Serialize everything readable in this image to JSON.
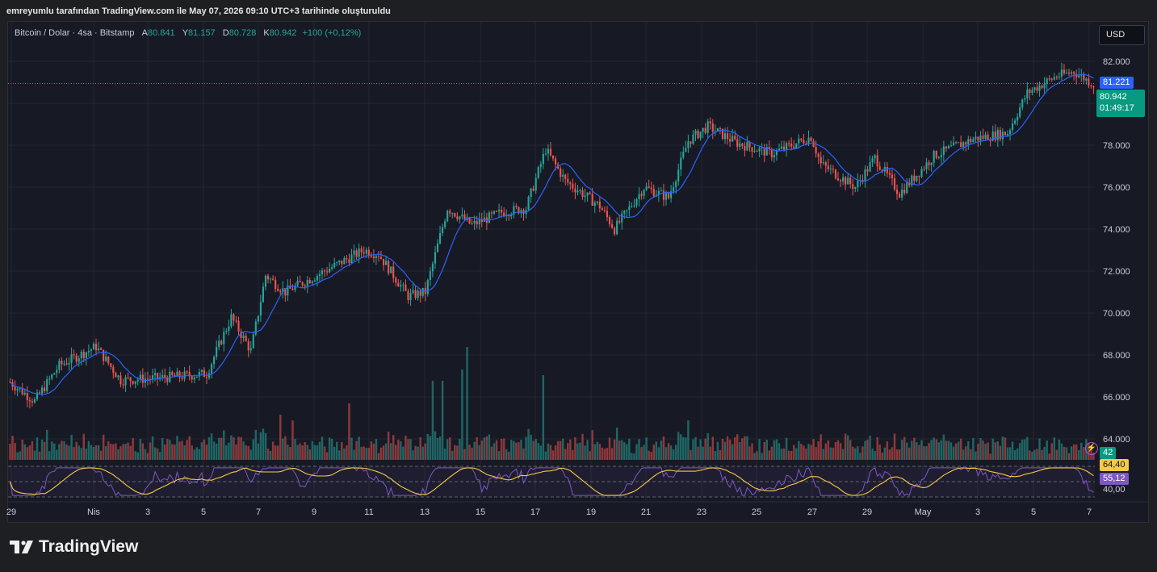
{
  "caption": "emreyumlu tarafından TradingView.com ile May 07, 2026 09:10 UTC+3 tarihinde oluşturuldu",
  "legend": {
    "symbol": "Bitcoin / Dolar · 4sa · Bitstamp",
    "open_label": "A",
    "open": "80.841",
    "high_label": "Y",
    "high": "81.157",
    "low_label": "D",
    "low": "80.728",
    "close_label": "K",
    "close": "80.942",
    "change": "+100 (+0,12%)"
  },
  "currency": "USD",
  "logo_text": "TradingView",
  "tags": {
    "ma_value": "81.221",
    "last_price": "80.942",
    "countdown": "01:49:17",
    "volume": "42",
    "rsi_ma": "64,40",
    "rsi": "55,12"
  },
  "colors": {
    "up": "#26a69a",
    "down": "#ef5350",
    "ma": "#2962ff",
    "rsi": "#7e57c2",
    "rsi_ma": "#f7c948",
    "background": "#171a24"
  },
  "chart_data": {
    "type": "candlestick",
    "symbol": "Bitcoin / Dolar",
    "interval": "4sa",
    "exchange": "Bitstamp",
    "ylim": [
      63000,
      83000
    ],
    "y_ticks": [
      "64.000",
      "66.000",
      "68.000",
      "70.000",
      "72.000",
      "74.000",
      "76.000",
      "78.000",
      "80.000",
      "82.000"
    ],
    "x_ticks": [
      "29",
      "Nis",
      "3",
      "5",
      "7",
      "9",
      "11",
      "13",
      "15",
      "17",
      "19",
      "21",
      "23",
      "25",
      "27",
      "29",
      "May",
      "3",
      "5",
      "7"
    ],
    "rsi_ticks": [
      "40,00"
    ],
    "close_anchors": [
      {
        "x": 0,
        "y": 66700
      },
      {
        "x": 10,
        "y": 65800
      },
      {
        "x": 20,
        "y": 67500
      },
      {
        "x": 35,
        "y": 68400
      },
      {
        "x": 45,
        "y": 66800
      },
      {
        "x": 60,
        "y": 66900
      },
      {
        "x": 80,
        "y": 67100
      },
      {
        "x": 90,
        "y": 69800
      },
      {
        "x": 98,
        "y": 68200
      },
      {
        "x": 104,
        "y": 71800
      },
      {
        "x": 112,
        "y": 71000
      },
      {
        "x": 128,
        "y": 72000
      },
      {
        "x": 144,
        "y": 73000
      },
      {
        "x": 150,
        "y": 72800
      },
      {
        "x": 162,
        "y": 70800
      },
      {
        "x": 169,
        "y": 71000
      },
      {
        "x": 178,
        "y": 75000
      },
      {
        "x": 188,
        "y": 74200
      },
      {
        "x": 200,
        "y": 74800
      },
      {
        "x": 210,
        "y": 75000
      },
      {
        "x": 218,
        "y": 77800
      },
      {
        "x": 226,
        "y": 76300
      },
      {
        "x": 240,
        "y": 75100
      },
      {
        "x": 246,
        "y": 74000
      },
      {
        "x": 258,
        "y": 76000
      },
      {
        "x": 268,
        "y": 75500
      },
      {
        "x": 276,
        "y": 78200
      },
      {
        "x": 284,
        "y": 78900
      },
      {
        "x": 296,
        "y": 78100
      },
      {
        "x": 310,
        "y": 77600
      },
      {
        "x": 326,
        "y": 78400
      },
      {
        "x": 330,
        "y": 77100
      },
      {
        "x": 344,
        "y": 76000
      },
      {
        "x": 352,
        "y": 77400
      },
      {
        "x": 362,
        "y": 75700
      },
      {
        "x": 376,
        "y": 77500
      },
      {
        "x": 392,
        "y": 78300
      },
      {
        "x": 406,
        "y": 78600
      },
      {
        "x": 414,
        "y": 80500
      },
      {
        "x": 426,
        "y": 81300
      },
      {
        "x": 433,
        "y": 81500
      },
      {
        "x": 441,
        "y": 80900
      }
    ],
    "candle_count": 442,
    "candle_seed": 7,
    "volume_spikes": [
      {
        "x": 172,
        "value": 0.7
      },
      {
        "x": 176,
        "value": 0.7
      },
      {
        "x": 184,
        "value": 0.8
      },
      {
        "x": 186,
        "value": 1.0
      },
      {
        "x": 217,
        "value": 0.75
      },
      {
        "x": 138,
        "value": 0.5
      },
      {
        "x": 110,
        "value": 0.4
      },
      {
        "x": 115,
        "value": 0.35
      },
      {
        "x": 276,
        "value": 0.35
      }
    ],
    "ma_period": 12,
    "rsi_ylim": [
      30,
      70
    ]
  }
}
